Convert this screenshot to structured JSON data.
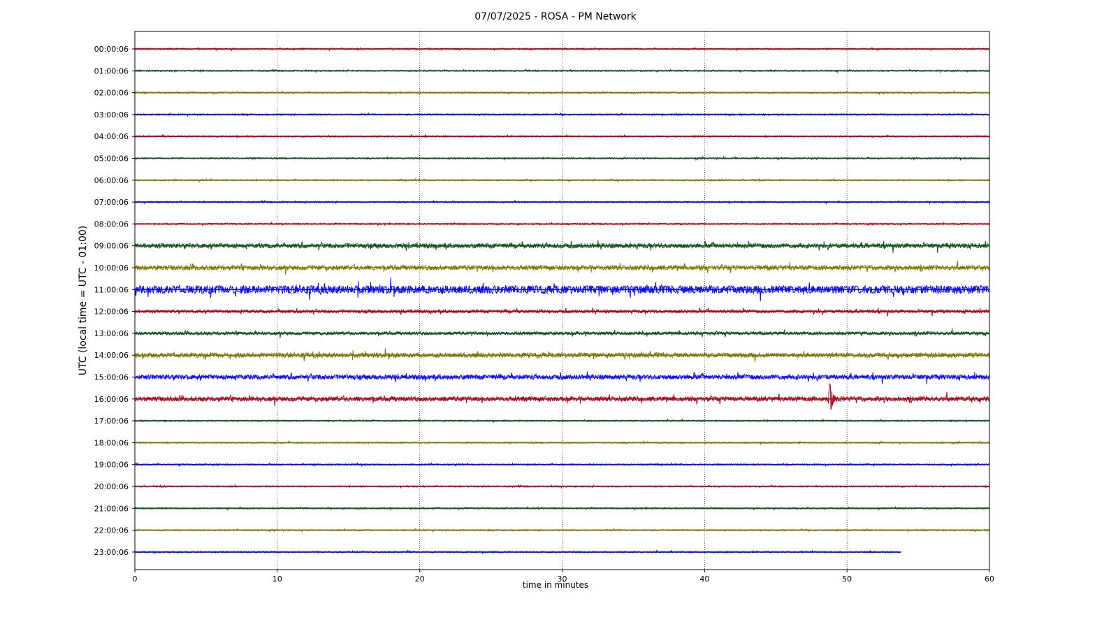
{
  "chart_data": {
    "type": "line",
    "title": "07/07/2025 - ROSA - PM Network",
    "xlabel": "time in minutes",
    "ylabel": "UTC (local time = UTC - 01:00)",
    "xlim": [
      0,
      60
    ],
    "xticks": [
      "0",
      "10",
      "20",
      "30",
      "40",
      "50",
      "60"
    ],
    "grid": "vertical dotted lines at x ticks",
    "rows": [
      {
        "label": "00:00:06",
        "color": "#b00018",
        "activity": "quiet",
        "end_minute": 60
      },
      {
        "label": "01:00:06",
        "color": "#0f5218",
        "activity": "quiet",
        "end_minute": 60
      },
      {
        "label": "02:00:06",
        "color": "#7f7400",
        "activity": "quiet",
        "end_minute": 60
      },
      {
        "label": "03:00:06",
        "color": "#0a0af0",
        "activity": "quiet",
        "end_minute": 60
      },
      {
        "label": "04:00:06",
        "color": "#b00018",
        "activity": "quiet",
        "end_minute": 60
      },
      {
        "label": "05:00:06",
        "color": "#0f5218",
        "activity": "quiet",
        "end_minute": 60
      },
      {
        "label": "06:00:06",
        "color": "#7f7400",
        "activity": "quiet",
        "end_minute": 60
      },
      {
        "label": "07:00:06",
        "color": "#0a0af0",
        "activity": "quiet",
        "end_minute": 60
      },
      {
        "label": "08:00:06",
        "color": "#b00018",
        "activity": "quiet",
        "end_minute": 60
      },
      {
        "label": "09:00:06",
        "color": "#0f5218",
        "activity": "moderate",
        "end_minute": 60
      },
      {
        "label": "10:00:06",
        "color": "#7f7400",
        "activity": "moderate",
        "end_minute": 60
      },
      {
        "label": "11:00:06",
        "color": "#0a0af0",
        "activity": "strong",
        "end_minute": 60
      },
      {
        "label": "12:00:06",
        "color": "#b00018",
        "activity": "light",
        "end_minute": 60
      },
      {
        "label": "13:00:06",
        "color": "#0f5218",
        "activity": "light",
        "end_minute": 60
      },
      {
        "label": "14:00:06",
        "color": "#7f7400",
        "activity": "moderate",
        "end_minute": 60
      },
      {
        "label": "15:00:06",
        "color": "#0a0af0",
        "activity": "moderate",
        "end_minute": 60
      },
      {
        "label": "16:00:06",
        "color": "#b00018",
        "activity": "moderate",
        "end_minute": 60,
        "event_minute": 48.8
      },
      {
        "label": "17:00:06",
        "color": "#0f5218",
        "activity": "quiet",
        "end_minute": 60
      },
      {
        "label": "18:00:06",
        "color": "#7f7400",
        "activity": "quiet",
        "end_minute": 60
      },
      {
        "label": "19:00:06",
        "color": "#0a0af0",
        "activity": "quiet",
        "end_minute": 60
      },
      {
        "label": "20:00:06",
        "color": "#b00018",
        "activity": "quiet",
        "end_minute": 60
      },
      {
        "label": "21:00:06",
        "color": "#0f5218",
        "activity": "quiet",
        "end_minute": 60
      },
      {
        "label": "22:00:06",
        "color": "#7f7400",
        "activity": "quiet",
        "end_minute": 60
      },
      {
        "label": "23:00:06",
        "color": "#0a0af0",
        "activity": "quiet",
        "end_minute": 53.8
      }
    ]
  }
}
